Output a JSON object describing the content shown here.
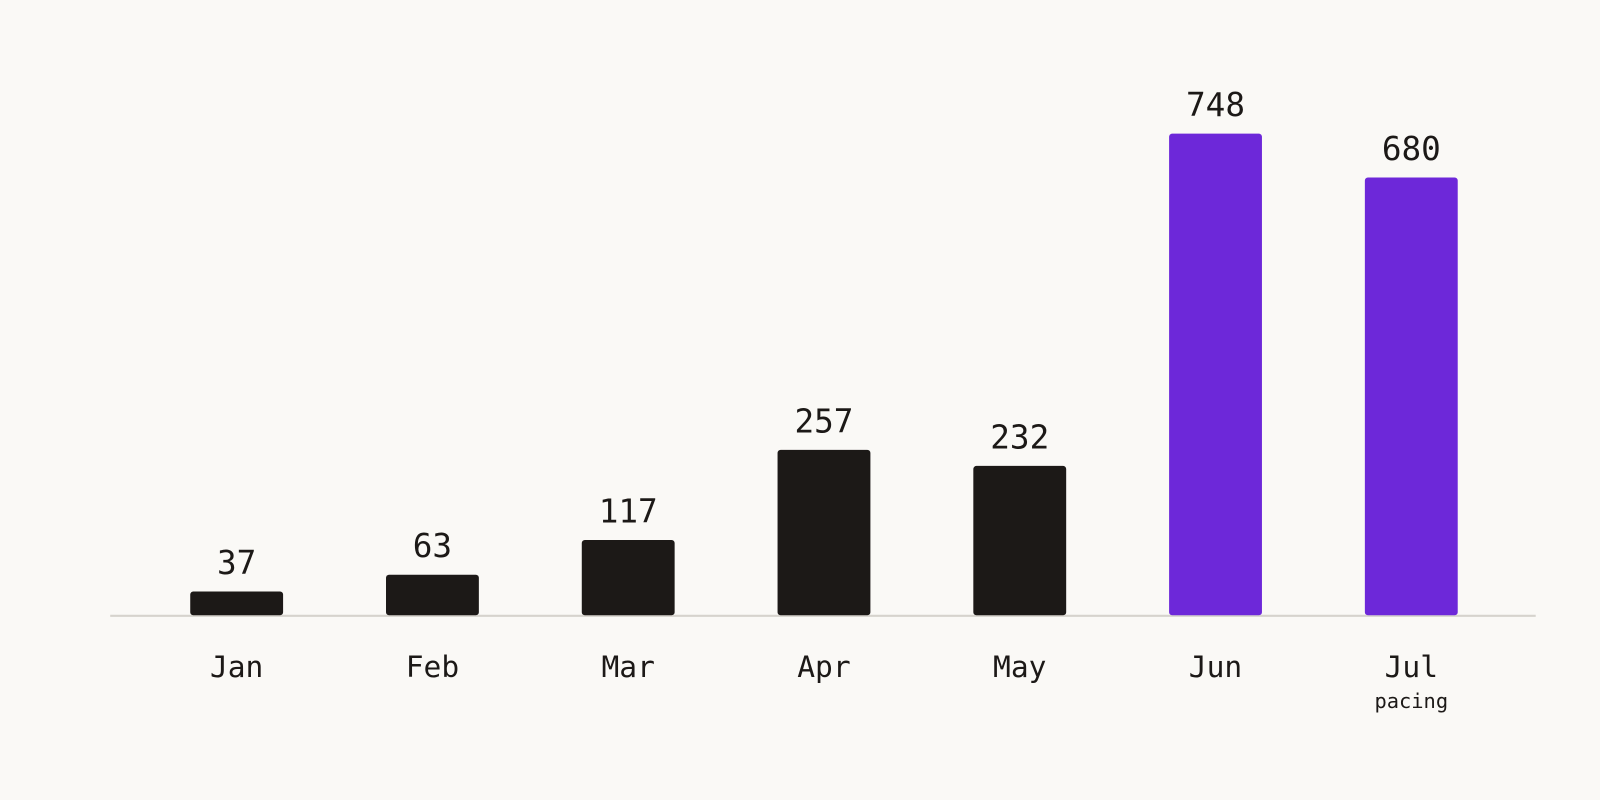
{
  "chart_data": {
    "type": "bar",
    "categories": [
      "Jan",
      "Feb",
      "Mar",
      "Apr",
      "May",
      "Jun",
      "Jul"
    ],
    "values": [
      37,
      63,
      117,
      257,
      232,
      748,
      680
    ],
    "colors": [
      "#1c1917",
      "#1c1917",
      "#1c1917",
      "#1c1917",
      "#1c1917",
      "#6d28d9",
      "#6d28d9"
    ],
    "category_notes": [
      null,
      null,
      null,
      null,
      null,
      null,
      "pacing"
    ],
    "grid": false
  }
}
